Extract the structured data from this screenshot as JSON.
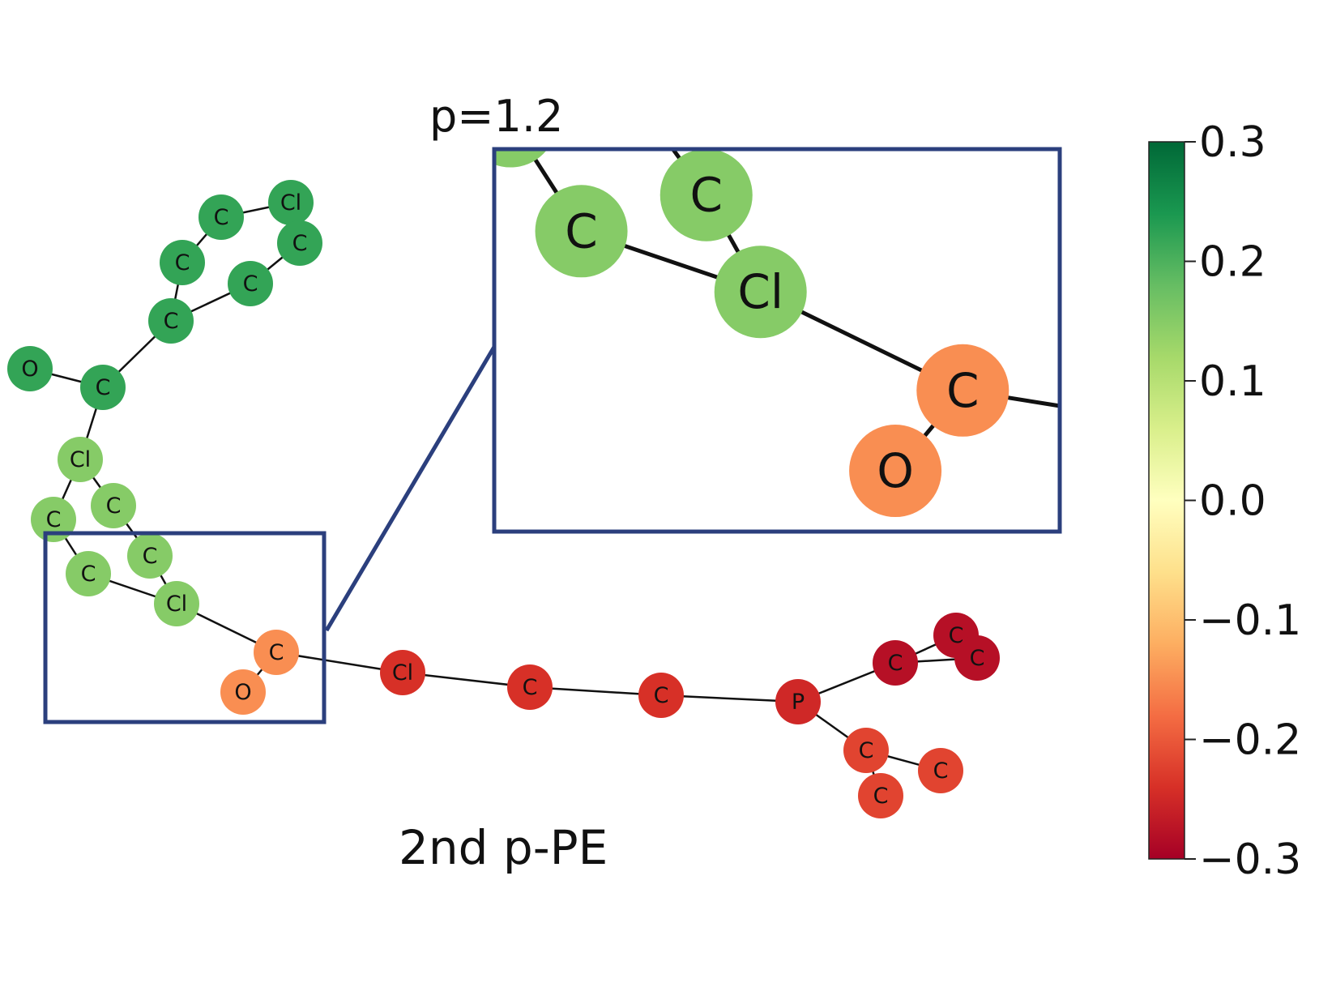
{
  "top_label": "p=1.2",
  "bottom_label": "2nd p-PE",
  "colorbar": {
    "ticks": [
      "0.3",
      "0.2",
      "0.1",
      "0.0",
      "−0.1",
      "−0.2",
      "−0.3"
    ],
    "tick_values": [
      0.3,
      0.2,
      0.1,
      0.0,
      -0.1,
      -0.2,
      -0.3
    ],
    "range": [
      -0.3,
      0.3
    ],
    "colormap": "RdYlGn"
  },
  "zoom_box_color": "#2b3f7d",
  "graph": {
    "nodes": [
      {
        "id": "n0",
        "label": "O",
        "value": 0.22
      },
      {
        "id": "n1",
        "label": "C",
        "value": 0.22
      },
      {
        "id": "n2",
        "label": "C",
        "value": 0.22
      },
      {
        "id": "n3",
        "label": "C",
        "value": 0.22
      },
      {
        "id": "n4",
        "label": "C",
        "value": 0.22
      },
      {
        "id": "n5",
        "label": "Cl",
        "value": 0.22
      },
      {
        "id": "n6",
        "label": "C",
        "value": 0.22
      },
      {
        "id": "n7",
        "label": "C",
        "value": 0.22
      },
      {
        "id": "n8",
        "label": "Cl",
        "value": 0.15
      },
      {
        "id": "n9",
        "label": "C",
        "value": 0.15
      },
      {
        "id": "n10",
        "label": "C",
        "value": 0.15
      },
      {
        "id": "n11",
        "label": "C",
        "value": 0.15
      },
      {
        "id": "n12",
        "label": "C",
        "value": 0.15
      },
      {
        "id": "n13",
        "label": "Cl",
        "value": 0.15
      },
      {
        "id": "n14",
        "label": "C",
        "value": -0.15
      },
      {
        "id": "n15",
        "label": "O",
        "value": -0.15
      },
      {
        "id": "n16",
        "label": "Cl",
        "value": -0.24
      },
      {
        "id": "n17",
        "label": "C",
        "value": -0.24
      },
      {
        "id": "n18",
        "label": "C",
        "value": -0.24
      },
      {
        "id": "n19",
        "label": "P",
        "value": -0.25
      },
      {
        "id": "n20",
        "label": "C",
        "value": -0.28
      },
      {
        "id": "n21",
        "label": "C",
        "value": -0.28
      },
      {
        "id": "n22",
        "label": "C",
        "value": -0.28
      },
      {
        "id": "n23",
        "label": "C",
        "value": -0.22
      },
      {
        "id": "n24",
        "label": "C",
        "value": -0.22
      },
      {
        "id": "n25",
        "label": "C",
        "value": -0.22
      }
    ],
    "edges": [
      [
        "n0",
        "n1"
      ],
      [
        "n1",
        "n2"
      ],
      [
        "n2",
        "n3"
      ],
      [
        "n3",
        "n4"
      ],
      [
        "n4",
        "n5"
      ],
      [
        "n5",
        "n6"
      ],
      [
        "n6",
        "n7"
      ],
      [
        "n7",
        "n2"
      ],
      [
        "n1",
        "n8"
      ],
      [
        "n8",
        "n9"
      ],
      [
        "n8",
        "n10"
      ],
      [
        "n9",
        "n11"
      ],
      [
        "n10",
        "n12"
      ],
      [
        "n11",
        "n13"
      ],
      [
        "n12",
        "n13"
      ],
      [
        "n13",
        "n14"
      ],
      [
        "n14",
        "n15"
      ],
      [
        "n14",
        "n16"
      ],
      [
        "n16",
        "n17"
      ],
      [
        "n17",
        "n18"
      ],
      [
        "n18",
        "n19"
      ],
      [
        "n19",
        "n20"
      ],
      [
        "n20",
        "n21"
      ],
      [
        "n20",
        "n22"
      ],
      [
        "n21",
        "n22"
      ],
      [
        "n19",
        "n23"
      ],
      [
        "n23",
        "n24"
      ],
      [
        "n23",
        "n25"
      ]
    ]
  },
  "zoom_inset_nodes": [
    "n11",
    "n12",
    "n13",
    "n14",
    "n15"
  ]
}
